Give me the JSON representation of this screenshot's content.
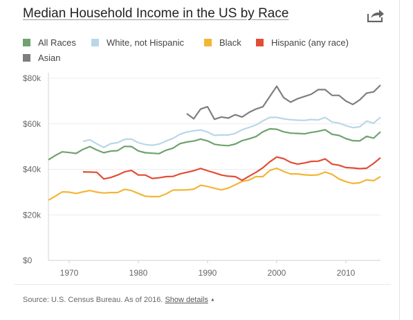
{
  "title": "Median Household Income in the US by Race",
  "share_icon": "share-arrow-icon",
  "footer": {
    "source": "Source: U.S. Census Bureau. As of 2016.",
    "show_details": "Show details",
    "caret": "▲"
  },
  "chart_data": {
    "type": "line",
    "title": "Median Household Income in the US by Race",
    "xlabel": "",
    "ylabel": "",
    "xlim": [
      1967,
      2015
    ],
    "ylim": [
      0,
      80000
    ],
    "x_ticks": [
      1970,
      1980,
      1990,
      2000,
      2010
    ],
    "y_ticks": [
      0,
      20000,
      40000,
      60000,
      80000
    ],
    "y_tick_labels": [
      "$0",
      "$20k",
      "$40k",
      "$60k",
      "$80k"
    ],
    "grid": true,
    "legend": "top",
    "series": [
      {
        "name": "All Races",
        "color": "#6fa26e",
        "x": [
          1967,
          1968,
          1969,
          1970,
          1971,
          1972,
          1973,
          1974,
          1975,
          1976,
          1977,
          1978,
          1979,
          1980,
          1981,
          1982,
          1983,
          1984,
          1985,
          1986,
          1987,
          1988,
          1989,
          1990,
          1991,
          1992,
          1993,
          1994,
          1995,
          1996,
          1997,
          1998,
          1999,
          2000,
          2001,
          2002,
          2003,
          2004,
          2005,
          2006,
          2007,
          2008,
          2009,
          2010,
          2011,
          2012,
          2013,
          2014,
          2015
        ],
        "values": [
          44200,
          46100,
          47700,
          47400,
          47000,
          48800,
          50000,
          48500,
          47300,
          48000,
          48200,
          50100,
          50000,
          48100,
          47300,
          47100,
          46900,
          48400,
          49300,
          51300,
          52000,
          52400,
          53300,
          52500,
          51000,
          50600,
          50400,
          51100,
          52600,
          53400,
          54400,
          56500,
          57800,
          57600,
          56500,
          55900,
          55800,
          55600,
          56200,
          56700,
          57400,
          55400,
          54900,
          53500,
          52600,
          52500,
          54500,
          53700,
          56500
        ]
      },
      {
        "name": "White, not Hispanic",
        "color": "#b9d7e8",
        "x": [
          1972,
          1973,
          1974,
          1975,
          1976,
          1977,
          1978,
          1979,
          1980,
          1981,
          1982,
          1983,
          1984,
          1985,
          1986,
          1987,
          1988,
          1989,
          1990,
          1991,
          1992,
          1993,
          1994,
          1995,
          1996,
          1997,
          1998,
          1999,
          2000,
          2001,
          2002,
          2003,
          2004,
          2005,
          2006,
          2007,
          2008,
          2009,
          2010,
          2011,
          2012,
          2013,
          2014,
          2015
        ],
        "values": [
          52300,
          53000,
          51200,
          49600,
          51300,
          51700,
          53200,
          53300,
          51700,
          50900,
          50600,
          51100,
          52400,
          53600,
          55400,
          56400,
          56900,
          57300,
          56400,
          54900,
          55100,
          55100,
          55800,
          57400,
          58400,
          59500,
          61300,
          62800,
          62800,
          62200,
          61800,
          61600,
          61500,
          61900,
          61700,
          62800,
          60800,
          60300,
          59200,
          58300,
          58700,
          61200,
          60300,
          62900
        ]
      },
      {
        "name": "Black",
        "color": "#f2b636",
        "x": [
          1967,
          1968,
          1969,
          1970,
          1971,
          1972,
          1973,
          1974,
          1975,
          1976,
          1977,
          1978,
          1979,
          1980,
          1981,
          1982,
          1983,
          1984,
          1985,
          1986,
          1987,
          1988,
          1989,
          1990,
          1991,
          1992,
          1993,
          1994,
          1995,
          1996,
          1997,
          1998,
          1999,
          2000,
          2001,
          2002,
          2003,
          2004,
          2005,
          2006,
          2007,
          2008,
          2009,
          2010,
          2011,
          2012,
          2013,
          2014,
          2015
        ],
        "values": [
          26500,
          28200,
          30100,
          30000,
          29400,
          30100,
          30700,
          30000,
          29600,
          29800,
          29800,
          31200,
          30700,
          29400,
          28200,
          28000,
          28000,
          29200,
          30900,
          30900,
          31000,
          31300,
          33000,
          32500,
          31700,
          31000,
          31800,
          33200,
          34700,
          35300,
          36800,
          36800,
          39500,
          40500,
          39100,
          38000,
          38000,
          37600,
          37400,
          37600,
          38800,
          37800,
          35800,
          34600,
          33800,
          34100,
          35400,
          35000,
          36800
        ]
      },
      {
        "name": "Hispanic (any race)",
        "color": "#e34c35",
        "x": [
          1972,
          1973,
          1974,
          1975,
          1976,
          1977,
          1978,
          1979,
          1980,
          1981,
          1982,
          1983,
          1984,
          1985,
          1986,
          1987,
          1988,
          1989,
          1990,
          1991,
          1992,
          1993,
          1994,
          1995,
          1996,
          1997,
          1998,
          1999,
          2000,
          2001,
          2002,
          2003,
          2004,
          2005,
          2006,
          2007,
          2008,
          2009,
          2010,
          2011,
          2012,
          2013,
          2014,
          2015
        ],
        "values": [
          38900,
          38800,
          38700,
          35800,
          36400,
          37500,
          38900,
          39500,
          37500,
          37500,
          36000,
          36300,
          36800,
          36900,
          38000,
          38700,
          39400,
          40400,
          39400,
          38500,
          37500,
          37000,
          36800,
          35200,
          37000,
          38700,
          40700,
          43300,
          45400,
          44700,
          43100,
          42300,
          42800,
          43500,
          43600,
          44600,
          42300,
          41800,
          40800,
          40600,
          40300,
          40500,
          42600,
          45100
        ]
      },
      {
        "name": "Asian",
        "color": "#7e7e7e",
        "x": [
          1987,
          1988,
          1989,
          1990,
          1991,
          1992,
          1993,
          1994,
          1995,
          1996,
          1997,
          1998,
          1999,
          2000,
          2001,
          2002,
          2003,
          2004,
          2005,
          2006,
          2007,
          2008,
          2009,
          2010,
          2011,
          2012,
          2013,
          2014,
          2015
        ],
        "values": [
          64500,
          62200,
          66500,
          67500,
          62000,
          63000,
          62500,
          64000,
          63000,
          65000,
          66500,
          67500,
          72000,
          76500,
          71500,
          69500,
          71000,
          72000,
          73000,
          75000,
          75000,
          72500,
          72500,
          70000,
          68500,
          70500,
          73500,
          74000,
          77000
        ]
      }
    ]
  }
}
